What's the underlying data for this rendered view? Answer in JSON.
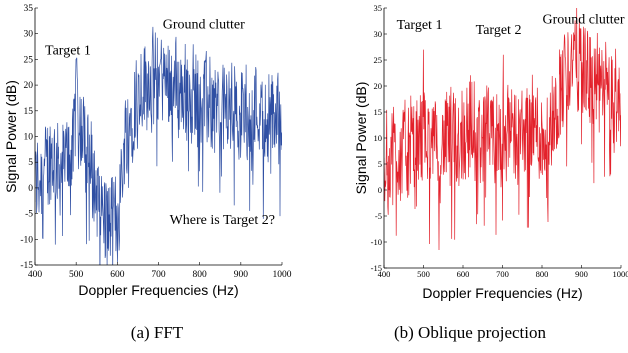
{
  "chart_data": [
    {
      "type": "line",
      "caption": "(a) FFT",
      "xlabel": "Doppler Frequencies (Hz)",
      "ylabel": "Signal Power (dB)",
      "xlim": [
        400,
        1000
      ],
      "ylim": [
        -15,
        35
      ],
      "xticks": [
        400,
        500,
        600,
        700,
        800,
        900,
        1000
      ],
      "yticks": [
        -15,
        -10,
        -5,
        0,
        5,
        10,
        15,
        20,
        25,
        30,
        35
      ],
      "grid": false,
      "series": [
        {
          "color": "#2f4fa3",
          "x": [
            400,
            420,
            440,
            460,
            480,
            495,
            500,
            505,
            520,
            540,
            560,
            580,
            600,
            620,
            640,
            660,
            680,
            700,
            720,
            740,
            760,
            780,
            800,
            820,
            840,
            860,
            880,
            900,
            920,
            940,
            960,
            980,
            1000
          ],
          "y": [
            1,
            3,
            6,
            4,
            6,
            9,
            25,
            12,
            10,
            2,
            -4,
            -7,
            -6,
            10,
            16,
            20,
            21,
            22,
            21,
            20,
            18,
            19,
            18,
            17,
            16,
            15,
            16,
            15,
            14,
            16,
            13,
            14,
            13
          ]
        }
      ],
      "annotations": [
        {
          "text": "Target 1",
          "x": 480,
          "y": 26
        },
        {
          "text": "Ground clutter",
          "x": 810,
          "y": 31
        },
        {
          "text": "Where is Target 2?",
          "x": 855,
          "y": -7
        }
      ]
    },
    {
      "type": "line",
      "caption": "(b) Oblique projection",
      "xlabel": "Doppler Frequencies (Hz)",
      "ylabel": "Signal Power (dB)",
      "xlim": [
        400,
        1000
      ],
      "ylim": [
        -15,
        35
      ],
      "xticks": [
        400,
        500,
        600,
        700,
        800,
        900,
        1000
      ],
      "yticks": [
        -15,
        -10,
        -5,
        0,
        5,
        10,
        15,
        20,
        25,
        30,
        35
      ],
      "grid": false,
      "series": [
        {
          "color": "#e3212b",
          "x": [
            400,
            420,
            440,
            460,
            480,
            500,
            520,
            540,
            560,
            580,
            600,
            620,
            640,
            660,
            680,
            700,
            720,
            740,
            760,
            780,
            800,
            820,
            840,
            860,
            880,
            900,
            920,
            940,
            960,
            980,
            1000
          ],
          "y": [
            6,
            8,
            7,
            9,
            7,
            11,
            9,
            8,
            10,
            9,
            11,
            12,
            10,
            11,
            9,
            10,
            12,
            10,
            11,
            12,
            10,
            11,
            17,
            22,
            26,
            24,
            21,
            20,
            19,
            18,
            17
          ]
        }
      ],
      "annotations": [
        {
          "text": "Target 1",
          "x": 490,
          "y": 31
        },
        {
          "text": "Target 2",
          "x": 690,
          "y": 30
        },
        {
          "text": "Ground clutter",
          "x": 905,
          "y": 32
        }
      ]
    }
  ]
}
